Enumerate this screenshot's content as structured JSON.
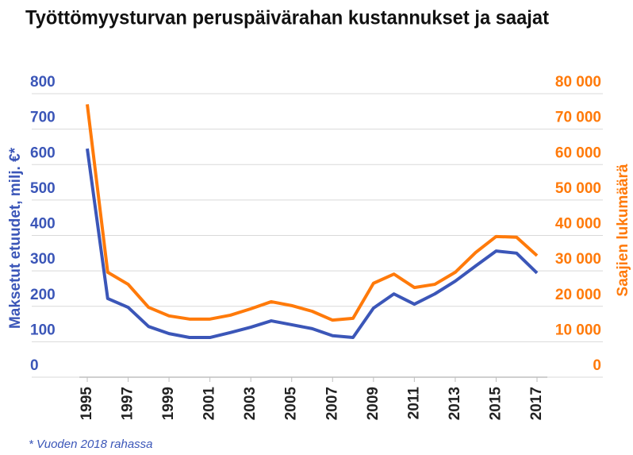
{
  "chart_data": {
    "type": "line",
    "title": "Työttömyysturvan peruspäivärahan kustannukset ja saajat",
    "y_label": "Maksetut etuudet, milj. €*",
    "y2_label": "Saajien lukumäärä",
    "footnote": "* Vuoden 2018 rahassa",
    "x": [
      1995,
      1996,
      1997,
      1998,
      1999,
      2000,
      2001,
      2002,
      2003,
      2004,
      2005,
      2006,
      2007,
      2008,
      2009,
      2010,
      2011,
      2012,
      2013,
      2014,
      2015,
      2016,
      2017
    ],
    "xlim": [
      1995,
      2017
    ],
    "xticks": [
      1995,
      1997,
      1999,
      2001,
      2003,
      2005,
      2007,
      2009,
      2011,
      2013,
      2015,
      2017
    ],
    "series": [
      {
        "name": "Maksetut etuudet, milj. €*",
        "color": "#3b56b8",
        "values": [
          645,
          222,
          197,
          143,
          123,
          112,
          112,
          126,
          141,
          159,
          148,
          137,
          117,
          112,
          195,
          235,
          206,
          235,
          271,
          314,
          356,
          350,
          294
        ]
      },
      {
        "name": "Saajien lukumäärä",
        "color": "#ff7a0a",
        "axis": "y2",
        "values": [
          77000,
          29600,
          26200,
          19700,
          17300,
          16400,
          16400,
          17500,
          19300,
          21300,
          20200,
          18600,
          16100,
          16600,
          26500,
          29100,
          25300,
          26200,
          29600,
          35200,
          39700,
          39500,
          34300
        ]
      }
    ],
    "ylim": [
      0,
      800
    ],
    "yticks": [
      0,
      100,
      200,
      300,
      400,
      500,
      600,
      700,
      800
    ],
    "y2lim": [
      0,
      80000
    ],
    "y2ticks": [
      {
        "value": 0,
        "label": "0"
      },
      {
        "value": 10000,
        "label": "10 000"
      },
      {
        "value": 20000,
        "label": "20 000"
      },
      {
        "value": 30000,
        "label": "30 000"
      },
      {
        "value": 40000,
        "label": "40 000"
      },
      {
        "value": 50000,
        "label": "50 000"
      },
      {
        "value": 60000,
        "label": "60 000"
      },
      {
        "value": 70000,
        "label": "70 000"
      },
      {
        "value": 80000,
        "label": "80 000"
      }
    ],
    "grid": true
  }
}
